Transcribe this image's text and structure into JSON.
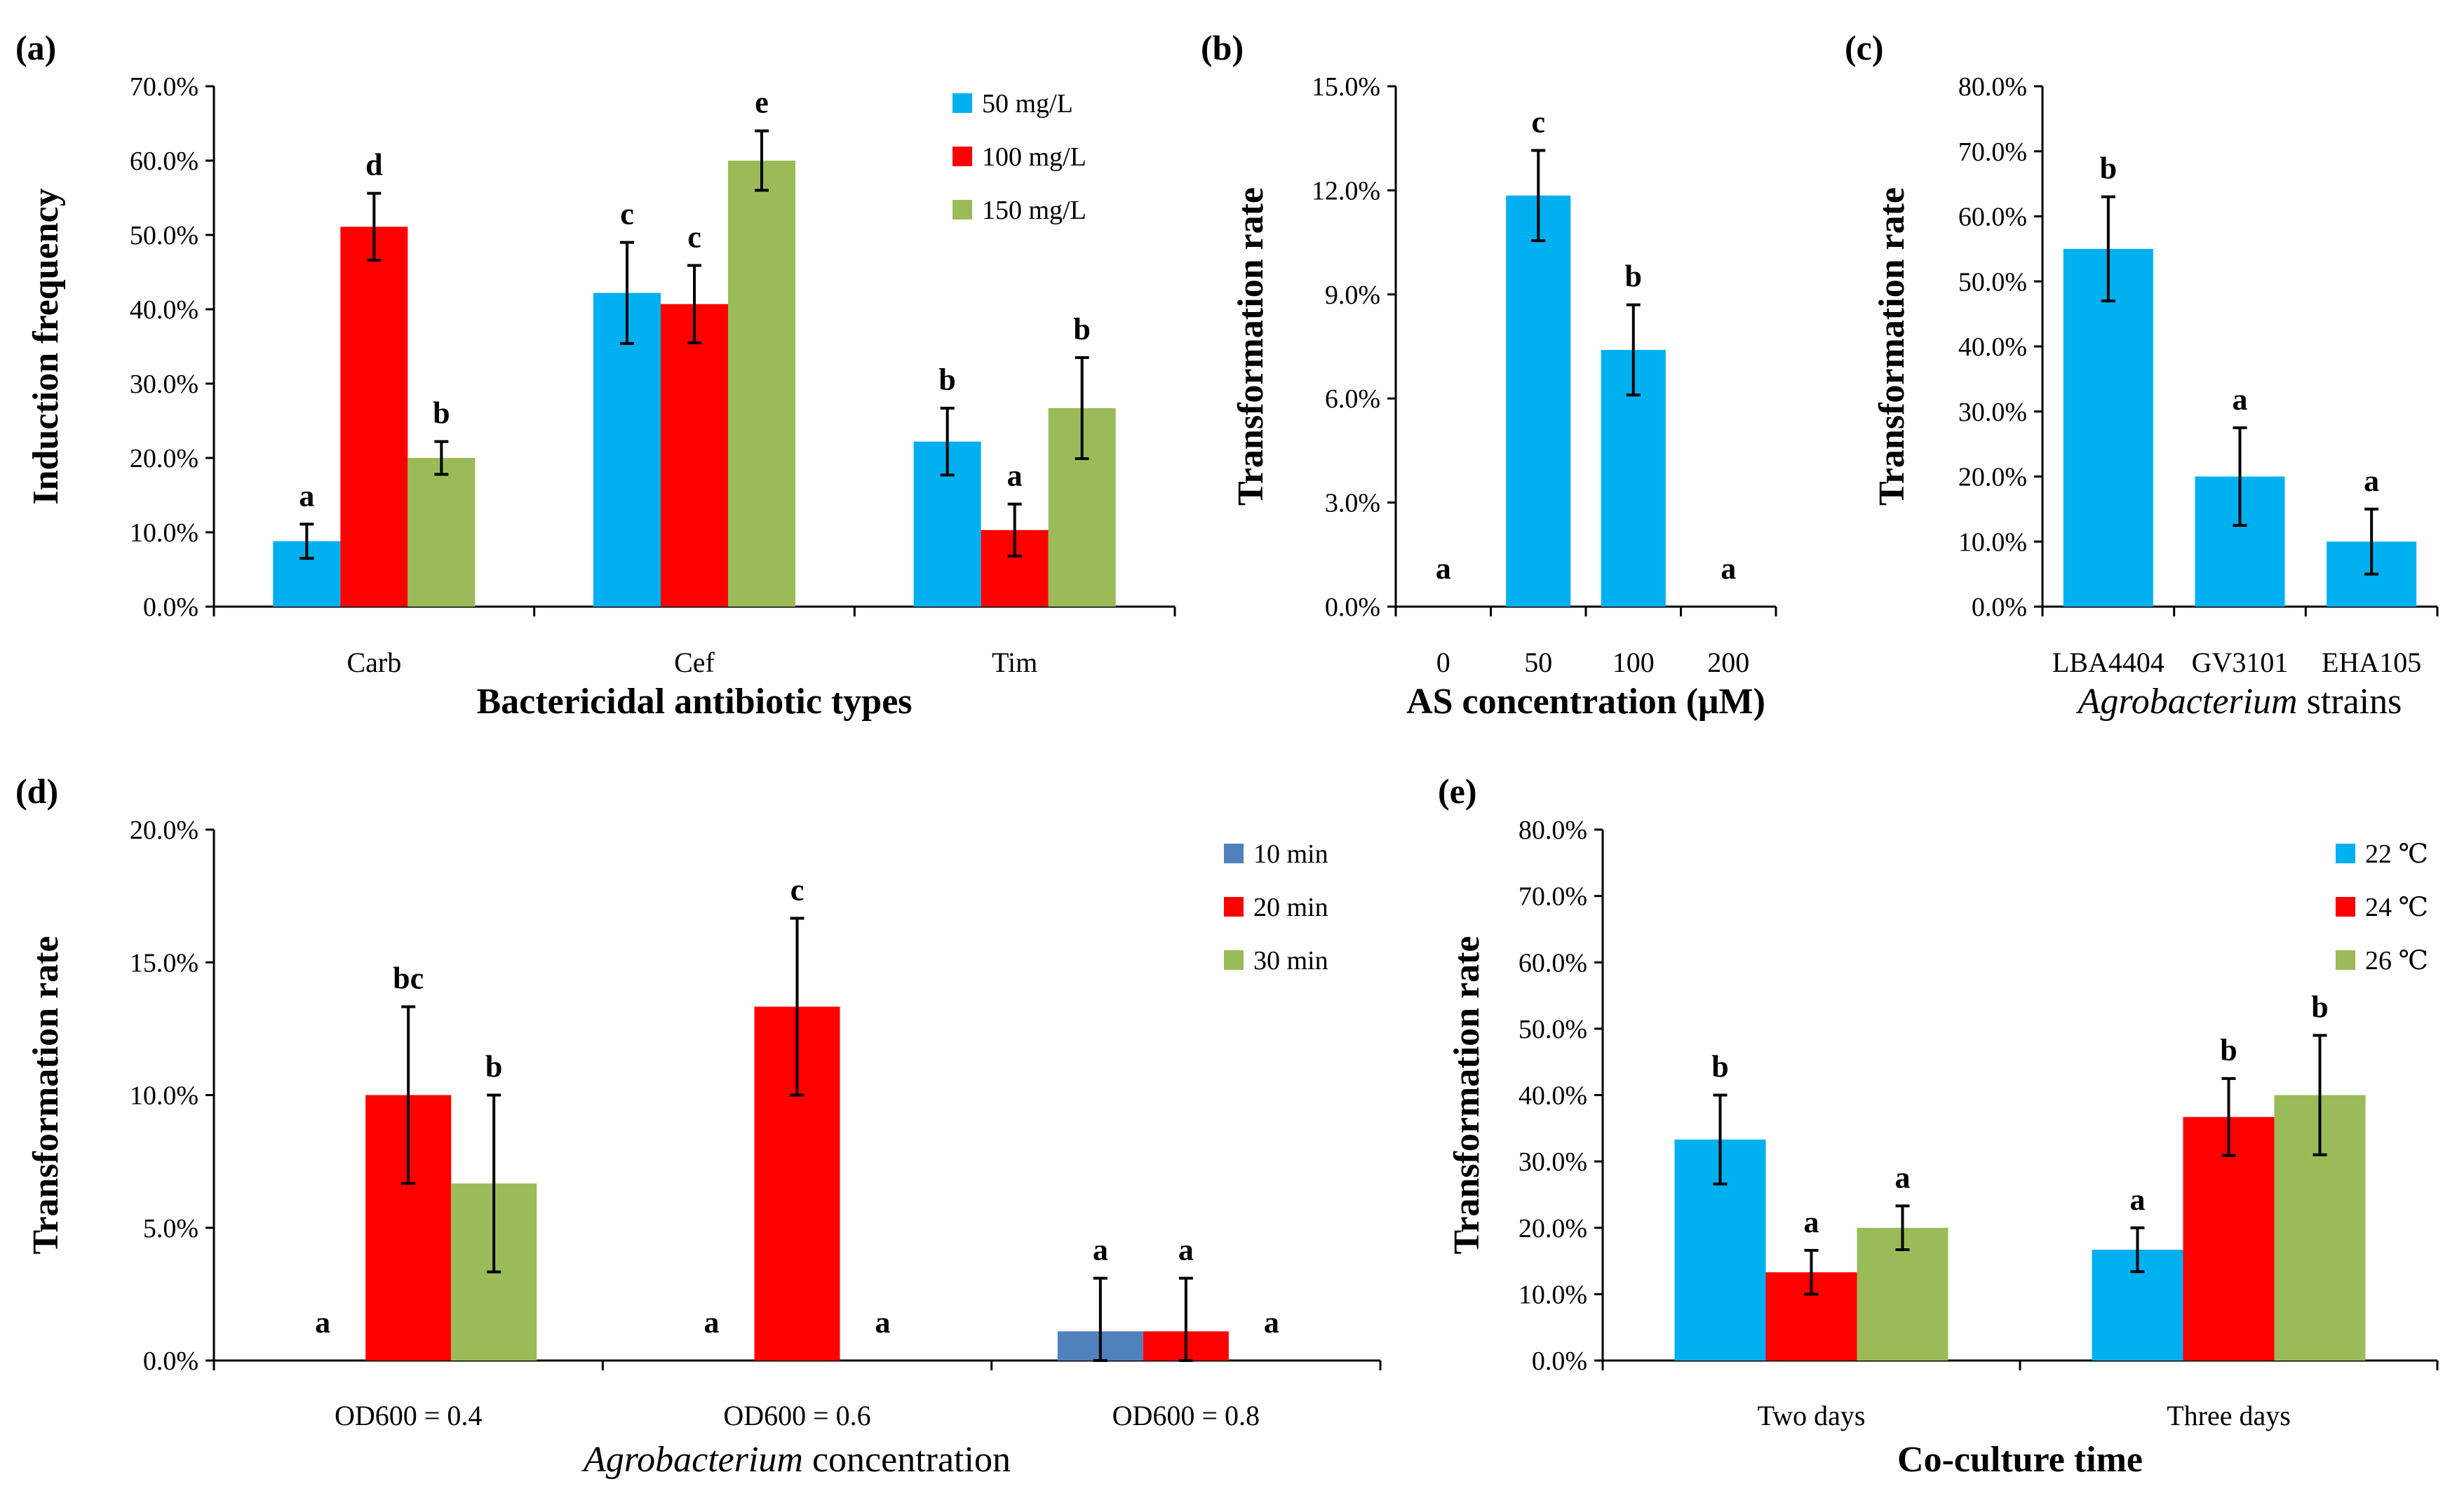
{
  "colors": {
    "blue": "#00B0F0",
    "red": "#FF0000",
    "green": "#9BBB59",
    "steel": "#4F81BD"
  },
  "chart_data": [
    {
      "panel": "(a)",
      "type": "bar",
      "categories": [
        "Carb",
        "Cef",
        "Tim"
      ],
      "xlabel": "Bactericidal antibiotic types",
      "ylabel": "Induction frequency",
      "ylim": [
        0,
        0.7
      ],
      "yticks": [
        "0.0%",
        "10.0%",
        "20.0%",
        "30.0%",
        "40.0%",
        "50.0%",
        "60.0%",
        "70.0%"
      ],
      "legend_position": "top-right",
      "series": [
        {
          "name": "50 mg/L",
          "color_key": "blue",
          "values": [
            0.088,
            0.422,
            0.222
          ],
          "errors": [
            0.023,
            0.068,
            0.045
          ],
          "letters": [
            "a",
            "c",
            "b"
          ]
        },
        {
          "name": "100 mg/L",
          "color_key": "red",
          "values": [
            0.511,
            0.407,
            0.103
          ],
          "errors": [
            0.045,
            0.052,
            0.035
          ],
          "letters": [
            "d",
            "c",
            "a"
          ]
        },
        {
          "name": "150 mg/L",
          "color_key": "green",
          "values": [
            0.2,
            0.6,
            0.267
          ],
          "errors": [
            0.022,
            0.04,
            0.068
          ],
          "letters": [
            "b",
            "e",
            "b"
          ]
        }
      ]
    },
    {
      "panel": "(b)",
      "type": "bar",
      "categories": [
        "0",
        "50",
        "100",
        "200"
      ],
      "xlabel": "AS concentration (μM)",
      "ylabel": "Transformation rate",
      "ylim": [
        0,
        0.15
      ],
      "yticks": [
        "0.0%",
        "3.0%",
        "6.0%",
        "9.0%",
        "12.0%",
        "15.0%"
      ],
      "series": [
        {
          "name": "rate",
          "color_key": "blue",
          "values": [
            0,
            0.1185,
            0.074,
            0
          ],
          "errors": [
            0,
            0.013,
            0.013,
            0
          ],
          "letters": [
            "a",
            "c",
            "b",
            "a"
          ]
        }
      ]
    },
    {
      "panel": "(c)",
      "type": "bar",
      "categories": [
        "LBA4404",
        "GV3101",
        "EHA105"
      ],
      "xlabel_italic": "Agrobacterium",
      "xlabel_rest": " strains",
      "ylabel": "Transformation rate",
      "ylim": [
        0,
        0.8
      ],
      "yticks": [
        "0.0%",
        "10.0%",
        "20.0%",
        "30.0%",
        "40.0%",
        "50.0%",
        "60.0%",
        "70.0%",
        "80.0%"
      ],
      "series": [
        {
          "name": "rate",
          "color_key": "blue",
          "values": [
            0.55,
            0.2,
            0.1
          ],
          "errors": [
            0.08,
            0.075,
            0.05
          ],
          "letters": [
            "b",
            "a",
            "a"
          ]
        }
      ]
    },
    {
      "panel": "(d)",
      "type": "bar",
      "categories": [
        "OD600 = 0.4",
        "OD600 = 0.6",
        "OD600 = 0.8"
      ],
      "xlabel_italic": "Agrobacterium",
      "xlabel_rest": " concentration",
      "ylabel": "Transformation rate",
      "ylim": [
        0,
        0.2
      ],
      "yticks": [
        "0.0%",
        "5.0%",
        "10.0%",
        "15.0%",
        "20.0%"
      ],
      "legend_position": "top-right",
      "series": [
        {
          "name": "10 min",
          "color_key": "steel",
          "values": [
            0,
            0,
            0.011
          ],
          "errors": [
            0,
            0,
            0.02
          ],
          "letters": [
            "a",
            "a",
            "a"
          ]
        },
        {
          "name": "20 min",
          "color_key": "red",
          "values": [
            0.1,
            0.1333,
            0.011
          ],
          "errors": [
            0.0333,
            0.0333,
            0.02
          ],
          "letters": [
            "bc",
            "c",
            "a"
          ]
        },
        {
          "name": "30 min",
          "color_key": "green",
          "values": [
            0.0667,
            0,
            0
          ],
          "errors": [
            0.0333,
            0,
            0
          ],
          "letters": [
            "b",
            "a",
            "a"
          ]
        }
      ]
    },
    {
      "panel": "(e)",
      "type": "bar",
      "categories": [
        "Two days",
        "Three days"
      ],
      "xlabel": "Co-culture time",
      "ylabel": "Transformation rate",
      "ylim": [
        0,
        0.8
      ],
      "yticks": [
        "0.0%",
        "10.0%",
        "20.0%",
        "30.0%",
        "40.0%",
        "50.0%",
        "60.0%",
        "70.0%",
        "80.0%"
      ],
      "legend_position": "top-right",
      "series": [
        {
          "name": "22 ℃",
          "color_key": "blue",
          "values": [
            0.333,
            0.167
          ],
          "errors": [
            0.067,
            0.033
          ],
          "letters": [
            "b",
            "a"
          ]
        },
        {
          "name": "24 ℃",
          "color_key": "red",
          "values": [
            0.133,
            0.367
          ],
          "errors": [
            0.033,
            0.058
          ],
          "letters": [
            "a",
            "b"
          ]
        },
        {
          "name": "26 ℃",
          "color_key": "green",
          "values": [
            0.2,
            0.4
          ],
          "errors": [
            0.033,
            0.09
          ],
          "letters": [
            "a",
            "b"
          ]
        }
      ]
    }
  ]
}
